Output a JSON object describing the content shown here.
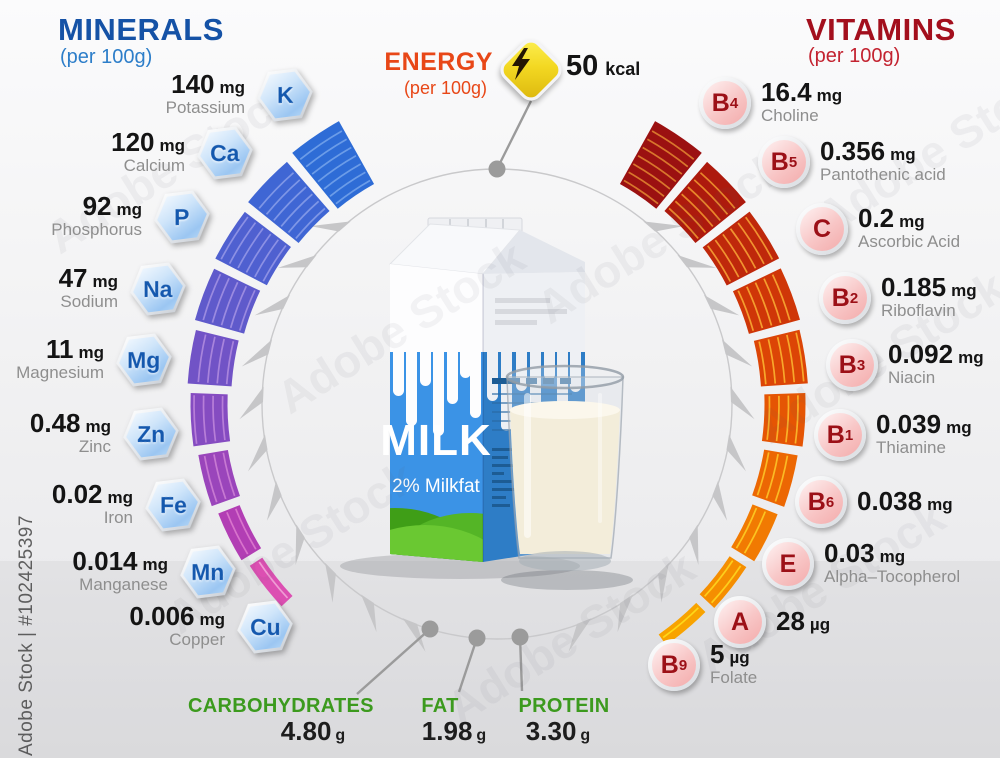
{
  "title_minerals": {
    "label": "MINERALS",
    "sub": "(per 100g)"
  },
  "title_vitamins": {
    "label": "VITAMINS",
    "sub": "(per 100g)"
  },
  "energy": {
    "label": "ENERGY",
    "sub": "(per 100g)",
    "value": "50",
    "unit": "kcal"
  },
  "minerals": [
    {
      "symbol": "K",
      "value": "140",
      "unit": "mg",
      "name": "Potassium"
    },
    {
      "symbol": "Ca",
      "value": "120",
      "unit": "mg",
      "name": "Calcium"
    },
    {
      "symbol": "P",
      "value": "92",
      "unit": "mg",
      "name": "Phosphorus"
    },
    {
      "symbol": "Na",
      "value": "47",
      "unit": "mg",
      "name": "Sodium"
    },
    {
      "symbol": "Mg",
      "value": "11",
      "unit": "mg",
      "name": "Magnesium"
    },
    {
      "symbol": "Zn",
      "value": "0.48",
      "unit": "mg",
      "name": "Zinc"
    },
    {
      "symbol": "Fe",
      "value": "0.02",
      "unit": "mg",
      "name": "Iron"
    },
    {
      "symbol": "Mn",
      "value": "0.014",
      "unit": "mg",
      "name": "Manganese"
    },
    {
      "symbol": "Cu",
      "value": "0.006",
      "unit": "mg",
      "name": "Copper"
    }
  ],
  "vitamins": [
    {
      "symbol": "B",
      "sub": "4",
      "value": "16.4",
      "unit": "mg",
      "name": "Choline"
    },
    {
      "symbol": "B",
      "sub": "5",
      "value": "0.356",
      "unit": "mg",
      "name": "Pantothenic acid"
    },
    {
      "symbol": "C",
      "sub": "",
      "value": "0.2",
      "unit": "mg",
      "name": "Ascorbic Acid"
    },
    {
      "symbol": "B",
      "sub": "2",
      "value": "0.185",
      "unit": "mg",
      "name": "Riboflavin"
    },
    {
      "symbol": "B",
      "sub": "3",
      "value": "0.092",
      "unit": "mg",
      "name": "Niacin"
    },
    {
      "symbol": "B",
      "sub": "1",
      "value": "0.039",
      "unit": "mg",
      "name": "Thiamine"
    },
    {
      "symbol": "B",
      "sub": "6",
      "value": "0.038",
      "unit": "mg",
      "name": ""
    },
    {
      "symbol": "E",
      "sub": "",
      "value": "0.03",
      "unit": "mg",
      "name": "Alpha–Tocopherol"
    },
    {
      "symbol": "A",
      "sub": "",
      "value": "28",
      "unit": "µg",
      "name": ""
    },
    {
      "symbol": "B",
      "sub": "9",
      "value": "5",
      "unit": "µg",
      "name": "Folate"
    }
  ],
  "macros": [
    {
      "label": "CARBOHYDRATES",
      "value": "4.80",
      "unit": "g"
    },
    {
      "label": "FAT",
      "value": "1.98",
      "unit": "g"
    },
    {
      "label": "PROTEIN",
      "value": "3.30",
      "unit": "g"
    }
  ],
  "carton": {
    "brand": "MILK",
    "subtitle": "2% Milkfat"
  },
  "watermark": {
    "side_text": "Adobe Stock | #102425397",
    "tile_text": "Adobe Stock"
  },
  "colors": {
    "minerals_title": "#1552a6",
    "minerals_subtitle": "#2d7ec9",
    "vitamins_title": "#a30f1d",
    "vitamins_subtitle": "#c32330",
    "energy_accent": "#e84717",
    "macro_green": "#3c9a1e",
    "value_text": "#141414",
    "name_text": "#8e8e8e",
    "mineral_symbol": "#1458ae",
    "vitamin_symbol": "#9c1017"
  },
  "arc_styles": {
    "minerals": [
      {
        "fill": "#2e6cd6",
        "stripe": "#6b9ce8"
      },
      {
        "fill": "#3f66d4",
        "stripe": "#7e96e6"
      },
      {
        "fill": "#4f60d0",
        "stripe": "#8c90e4"
      },
      {
        "fill": "#5f5acb",
        "stripe": "#9a8ae0"
      },
      {
        "fill": "#7153c6",
        "stripe": "#a884dc"
      },
      {
        "fill": "#854cc1",
        "stripe": "#b77ed8"
      },
      {
        "fill": "#9a45bb",
        "stripe": "#c778d2"
      },
      {
        "fill": "#b23eb4",
        "stripe": "#d873cc"
      },
      {
        "fill": "#dc4fb2",
        "stripe": "#ef9cd4"
      }
    ],
    "vitamins": [
      {
        "fill": "#9b1111",
        "stripe": "#d8762c"
      },
      {
        "fill": "#ad1a0d",
        "stripe": "#e8862a"
      },
      {
        "fill": "#bf280b",
        "stripe": "#f09330"
      },
      {
        "fill": "#cf3608",
        "stripe": "#f49d2e"
      },
      {
        "fill": "#dc4506",
        "stripe": "#f7a72b"
      },
      {
        "fill": "#e55504",
        "stripe": "#f9b028"
      },
      {
        "fill": "#ec6703",
        "stripe": "#fbba24"
      },
      {
        "fill": "#f17a02",
        "stripe": "#fcc420"
      },
      {
        "fill": "#f58e01",
        "stripe": "#fdce1c"
      },
      {
        "fill": "#f8a300",
        "stripe": "#fed818"
      }
    ]
  },
  "chart_data": [
    {
      "type": "bar",
      "title": "MINERALS (per 100g)",
      "categories": [
        "Potassium (K)",
        "Calcium (Ca)",
        "Phosphorus (P)",
        "Sodium (Na)",
        "Magnesium (Mg)",
        "Zinc (Zn)",
        "Iron (Fe)",
        "Manganese (Mn)",
        "Copper (Cu)"
      ],
      "values": [
        140,
        120,
        92,
        47,
        11,
        0.48,
        0.02,
        0.014,
        0.006
      ],
      "unit": "mg",
      "layout": "radial segments, left half of circle, blue-to-pink, size decreasing with rank"
    },
    {
      "type": "bar",
      "title": "VITAMINS (per 100g)",
      "categories": [
        "B4 Choline",
        "B5 Pantothenic acid",
        "C Ascorbic Acid",
        "B2 Riboflavin",
        "B3 Niacin",
        "B1 Thiamine",
        "B6",
        "E Alpha–Tocopherol",
        "A",
        "B9 Folate"
      ],
      "values": [
        16.4,
        0.356,
        0.2,
        0.185,
        0.092,
        0.039,
        0.038,
        0.03,
        0.028,
        0.005
      ],
      "values_display": [
        "16.4 mg",
        "0.356 mg",
        "0.2 mg",
        "0.185 mg",
        "0.092 mg",
        "0.039 mg",
        "0.038 mg",
        "0.03 mg",
        "28 µg",
        "5 µg"
      ],
      "unit": "mg",
      "layout": "radial segments, right half of circle, dark-red-to-orange, size decreasing with rank"
    },
    {
      "type": "bar",
      "title": "Macronutrients (per 100g)",
      "categories": [
        "Carbohydrates",
        "Fat",
        "Protein"
      ],
      "values": [
        4.8,
        1.98,
        3.3
      ],
      "unit": "g"
    },
    {
      "type": "bar",
      "title": "Energy (per 100g)",
      "categories": [
        "Energy"
      ],
      "values": [
        50
      ],
      "unit": "kcal"
    }
  ]
}
